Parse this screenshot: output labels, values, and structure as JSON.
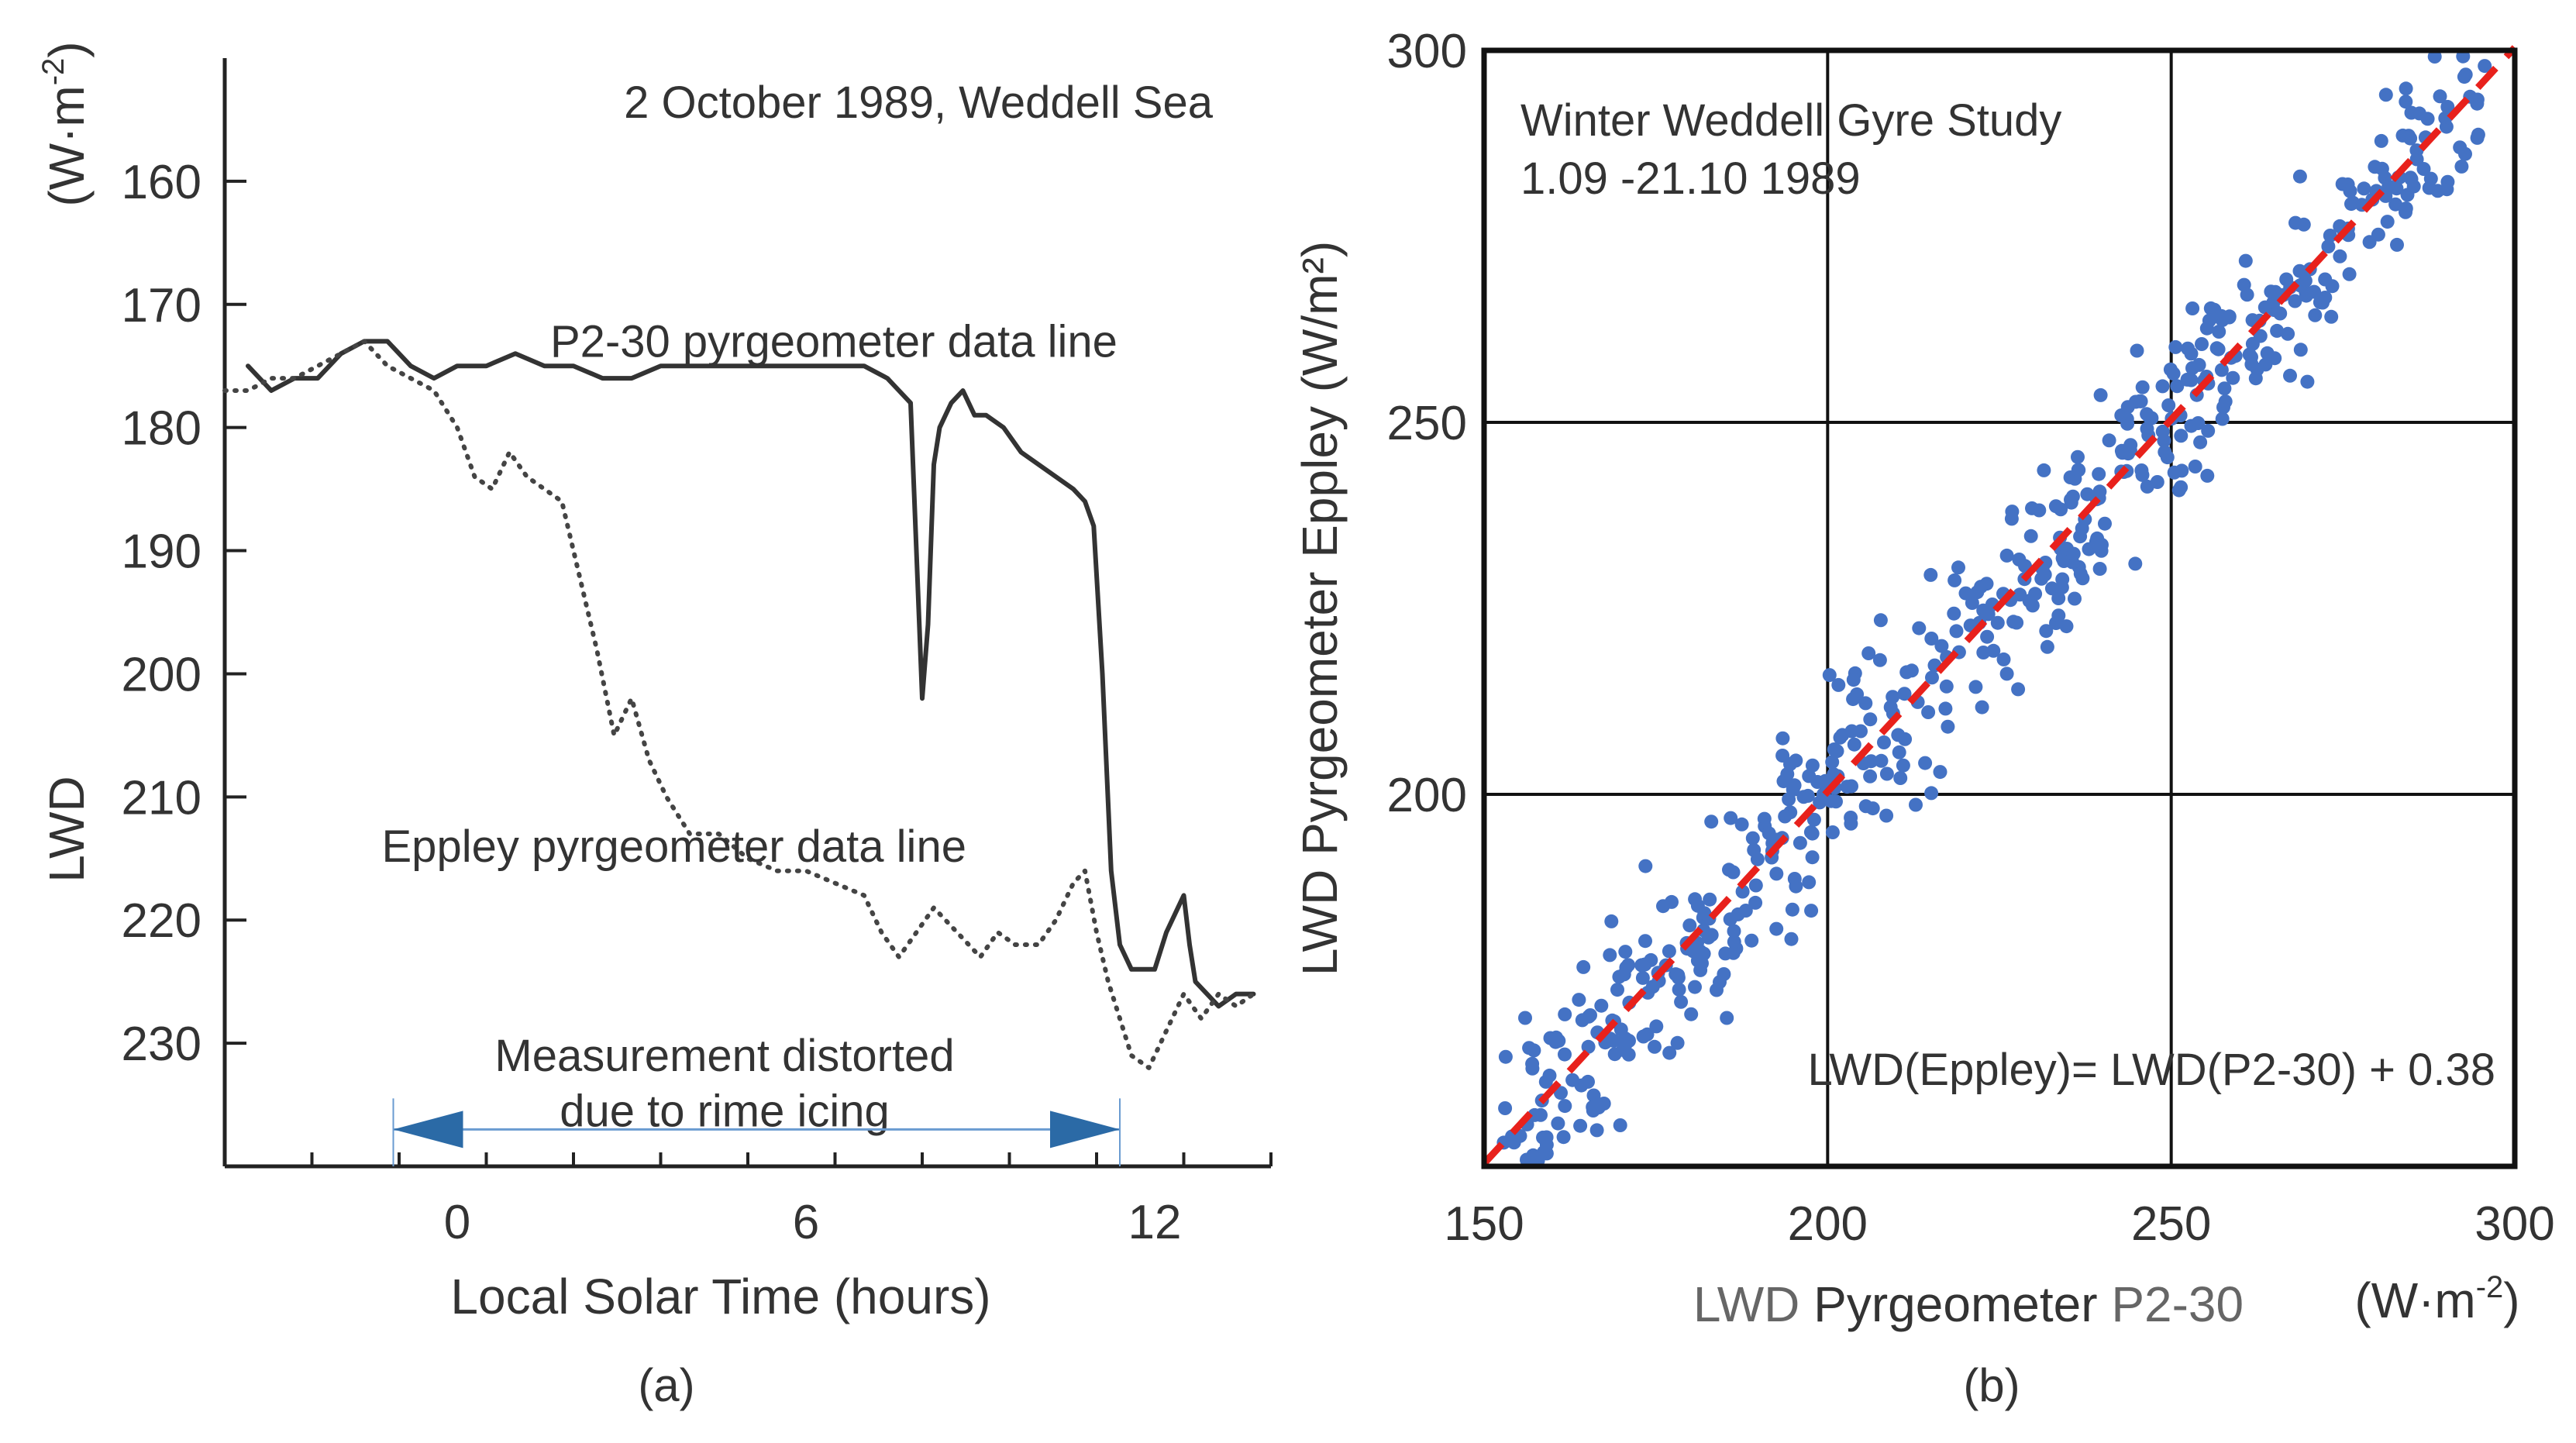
{
  "chart_data": [
    {
      "type": "line",
      "panel_label": "(a)",
      "title": "2 October 1989, Weddell Sea",
      "xlabel": "Local Solar Time  (hours)",
      "ylabel": "LWD",
      "yunit_base": "(W·m",
      "yunit_sup": "-2",
      "yunit_close": ")",
      "xlim": [
        -4,
        14
      ],
      "ylim": [
        240,
        150
      ],
      "y_inverted": true,
      "xticks": [
        0,
        6,
        12
      ],
      "yticks": [
        160,
        170,
        180,
        190,
        200,
        210,
        220,
        230
      ],
      "grid": false,
      "series": [
        {
          "name": "P2-30 pyrgeometer data line",
          "style": "solid",
          "color": "#333333",
          "x": [
            -3.6,
            -3.2,
            -2.8,
            -2.4,
            -2.0,
            -1.6,
            -1.2,
            -0.8,
            -0.4,
            0.0,
            0.5,
            1.0,
            1.5,
            2.0,
            2.5,
            3.0,
            3.5,
            4.0,
            4.5,
            5.0,
            5.5,
            6.0,
            6.5,
            7.0,
            7.4,
            7.6,
            7.8,
            7.9,
            8.0,
            8.1,
            8.2,
            8.3,
            8.5,
            8.7,
            8.9,
            9.1,
            9.4,
            9.7,
            10.0,
            10.3,
            10.6,
            10.8,
            10.95,
            11.1,
            11.25,
            11.4,
            11.6,
            12.0,
            12.2,
            12.4,
            12.5,
            12.6,
            12.7,
            12.9,
            13.1,
            13.4,
            13.7
          ],
          "y": [
            175,
            177,
            176,
            176,
            174,
            173,
            173,
            175,
            176,
            175,
            175,
            174,
            175,
            175,
            176,
            176,
            175,
            175,
            175,
            175,
            175,
            175,
            175,
            175,
            176,
            177,
            178,
            190,
            202,
            196,
            183,
            180,
            178,
            177,
            179,
            179,
            180,
            182,
            183,
            184,
            185,
            186,
            188,
            200,
            216,
            222,
            224,
            224,
            221,
            219,
            218,
            222,
            225,
            226,
            227,
            226,
            226
          ]
        },
        {
          "name": "Eppley pyrgeometer data line",
          "style": "dotted",
          "color": "#444444",
          "x": [
            -4.0,
            -3.6,
            -3.2,
            -2.8,
            -2.4,
            -2.0,
            -1.6,
            -1.2,
            -0.8,
            -0.4,
            0.0,
            0.3,
            0.6,
            0.9,
            1.2,
            1.5,
            1.8,
            2.1,
            2.4,
            2.7,
            3.0,
            3.3,
            3.6,
            4.0,
            4.5,
            5.0,
            5.5,
            6.0,
            6.5,
            7.0,
            7.3,
            7.6,
            7.9,
            8.2,
            8.6,
            9.0,
            9.3,
            9.6,
            10.0,
            10.3,
            10.6,
            10.8,
            11.0,
            11.2,
            11.4,
            11.6,
            11.9,
            12.2,
            12.5,
            12.8,
            13.1,
            13.4,
            13.7
          ],
          "y": [
            177,
            177,
            176,
            176,
            175,
            174,
            173,
            175,
            176,
            177,
            180,
            184,
            185,
            182,
            184,
            185,
            186,
            192,
            198,
            205,
            202,
            207,
            210,
            213,
            213,
            215,
            216,
            216,
            217,
            218,
            221,
            223,
            221,
            219,
            221,
            223,
            221,
            222,
            222,
            220,
            217,
            216,
            221,
            225,
            228,
            231,
            232,
            229,
            226,
            228,
            226,
            227,
            226
          ]
        }
      ],
      "annotations": [
        {
          "text": "Measurement distorted",
          "x": 4.6,
          "y": 231
        },
        {
          "text": "due to rime icing",
          "x": 4.6,
          "y": 235.5
        },
        {
          "text": "P2-30 pyrgeometer data line",
          "x": 1.6,
          "y": 173
        },
        {
          "text": "Eppley pyrgeometer data line",
          "x": -1.3,
          "y": 214
        }
      ],
      "arrow": {
        "from": -1.1,
        "to": 11.4,
        "y": 237
      }
    },
    {
      "type": "scatter",
      "panel_label": "(b)",
      "title_line1": "Winter Weddell Gyre Study",
      "title_line2": "1.09 -21.10 1989",
      "xlabel_prefix": "LWD  ",
      "xlabel_main": "Pyrgeometer ",
      "xlabel_suffix": "P2-30",
      "xunit_base": "(W·m",
      "xunit_sup": "-2",
      "xunit_close": ")",
      "ylabel": "LWD  Pyrgeometer Eppley  (W/m²)",
      "xlim": [
        150,
        300
      ],
      "ylim": [
        150,
        300
      ],
      "xticks": [
        150,
        200,
        250,
        300
      ],
      "yticks": [
        200,
        250,
        300
      ],
      "grid_at": [
        200,
        250
      ],
      "grid": true,
      "point_color": "#4472c4",
      "n_points": 560,
      "point_scatter_sd": 6,
      "x_range_points": [
        152,
        296
      ],
      "fit": {
        "label": "LWD(Eppley)= LWD(P2-30) + 0.38",
        "slope": 1,
        "intercept": 0.38,
        "color": "#e8211c",
        "style": "dashed"
      }
    }
  ]
}
